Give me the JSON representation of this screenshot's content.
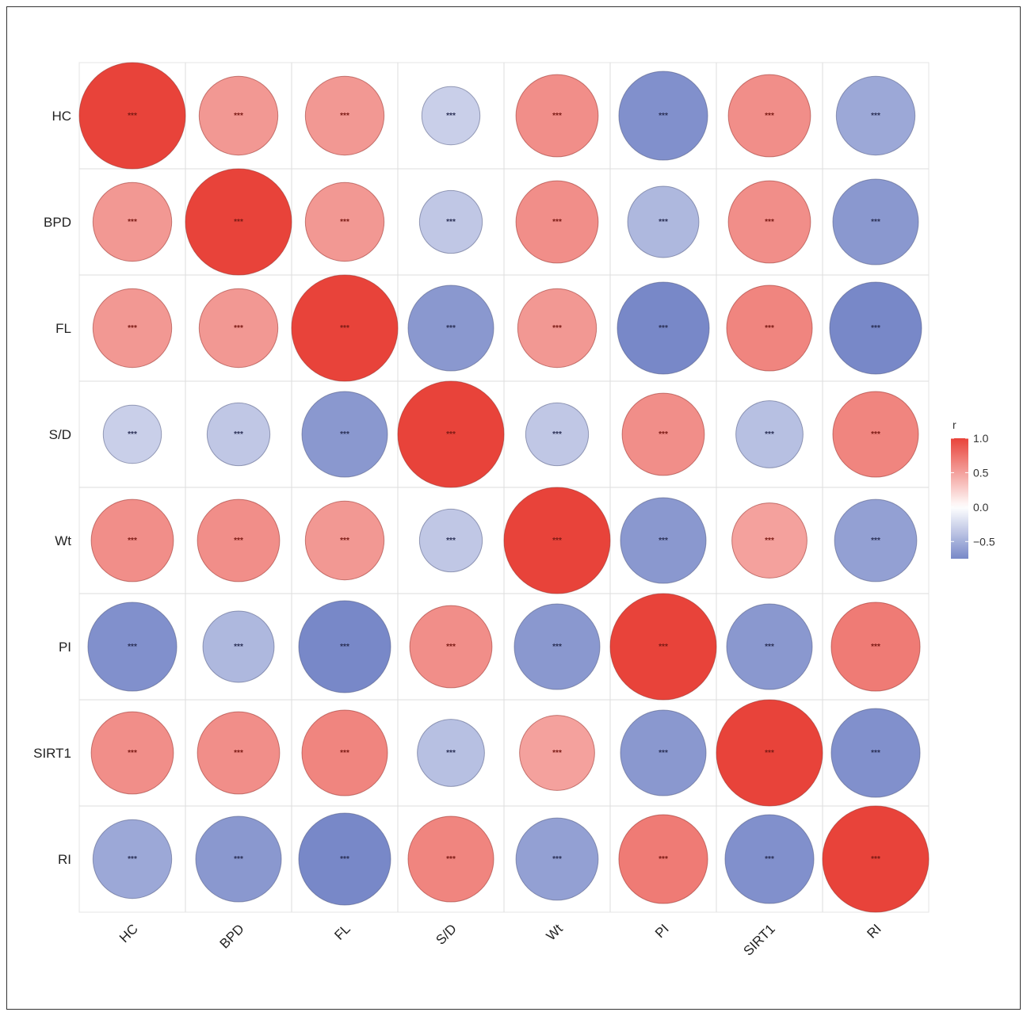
{
  "chart_data": {
    "type": "heatmap",
    "title": "",
    "variables": [
      "HC",
      "BPD",
      "FL",
      "S/D",
      "Wt",
      "PI",
      "SIRT1",
      "RI"
    ],
    "matrix": [
      [
        1.0,
        0.55,
        0.55,
        -0.3,
        0.6,
        -0.7,
        0.6,
        -0.55
      ],
      [
        0.55,
        1.0,
        0.55,
        -0.35,
        0.6,
        -0.45,
        0.6,
        -0.65
      ],
      [
        0.55,
        0.55,
        1.0,
        -0.65,
        0.55,
        -0.75,
        0.65,
        -0.75
      ],
      [
        -0.3,
        -0.35,
        -0.65,
        1.0,
        -0.35,
        0.6,
        -0.4,
        0.65
      ],
      [
        0.6,
        0.6,
        0.55,
        -0.35,
        1.0,
        -0.65,
        0.5,
        -0.6
      ],
      [
        -0.7,
        -0.45,
        -0.75,
        0.6,
        -0.65,
        1.0,
        -0.65,
        0.7
      ],
      [
        0.6,
        0.6,
        0.65,
        -0.4,
        0.5,
        -0.65,
        1.0,
        -0.7
      ],
      [
        -0.55,
        -0.65,
        -0.75,
        0.65,
        -0.6,
        0.7,
        -0.7,
        1.0
      ]
    ],
    "significance": "***",
    "legend": {
      "title": "r",
      "placement": "right",
      "ticks": [
        "1.0",
        "0.5",
        "0.0",
        "−0.5"
      ],
      "tick_values": [
        1.0,
        0.5,
        0.0,
        -0.5
      ],
      "range": [
        -0.75,
        1.0
      ]
    },
    "colors": {
      "high": "#E8433A",
      "mid": "#FFFFFF",
      "low": "#7888C8"
    },
    "grid": true
  }
}
